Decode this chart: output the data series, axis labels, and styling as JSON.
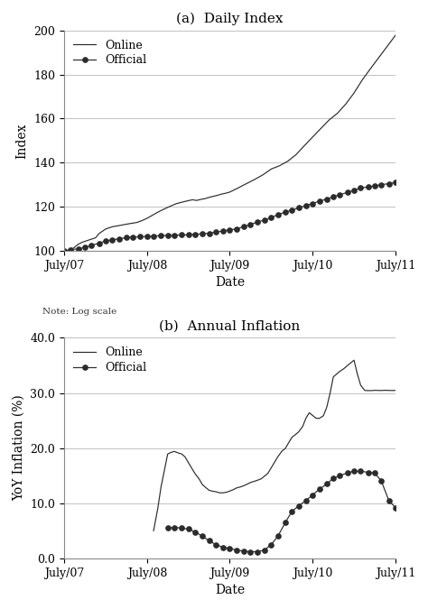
{
  "title_a": "(a)  Daily Index",
  "title_b": "(b)  Annual Inflation",
  "xlabel": "Date",
  "ylabel_a": "Index",
  "ylabel_b": "YoY Inflation (%)",
  "note": "Note: Log scale",
  "xtick_labels": [
    "July/07",
    "July/08",
    "July/09",
    "July/10",
    "July/11"
  ],
  "panel_a": {
    "ylim": [
      100,
      200
    ],
    "yticks": [
      100,
      120,
      140,
      160,
      180,
      200
    ],
    "online_pts_t": [
      0.0,
      0.08,
      0.12,
      0.17,
      0.22,
      0.3,
      0.38,
      0.42,
      0.5,
      0.58,
      0.65,
      0.72,
      0.8,
      0.88,
      0.95,
      1.0,
      1.05,
      1.12,
      1.2,
      1.28,
      1.35,
      1.4,
      1.45,
      1.5,
      1.55,
      1.6,
      1.65,
      1.7,
      1.75,
      1.8,
      1.85,
      1.9,
      1.95,
      2.0,
      2.1,
      2.2,
      2.3,
      2.4,
      2.5,
      2.6,
      2.7,
      2.8,
      2.9,
      3.0,
      3.1,
      3.2,
      3.3,
      3.4,
      3.5,
      3.6,
      3.7,
      3.8,
      3.9,
      4.0
    ],
    "online_pts_v": [
      100,
      100.5,
      101.5,
      103,
      104,
      105,
      106,
      108,
      110,
      111,
      111.5,
      112,
      112.5,
      113,
      114,
      115,
      116,
      117.5,
      119,
      120.5,
      121.5,
      122,
      122.5,
      122.8,
      123.2,
      123.0,
      123.5,
      124,
      124.5,
      125,
      125.5,
      126,
      126.5,
      127,
      129,
      131,
      133,
      135,
      137.5,
      139,
      141,
      144,
      148,
      152,
      156,
      160,
      163,
      167,
      172,
      178,
      183,
      188,
      193,
      198
    ],
    "official_pts_t": [
      0.0,
      0.08,
      0.17,
      0.25,
      0.33,
      0.42,
      0.5,
      0.58,
      0.67,
      0.75,
      0.83,
      0.92,
      1.0,
      1.08,
      1.17,
      1.25,
      1.33,
      1.42,
      1.5,
      1.58,
      1.67,
      1.75,
      1.83,
      1.92,
      2.0,
      2.08,
      2.17,
      2.25,
      2.33,
      2.42,
      2.5,
      2.58,
      2.67,
      2.75,
      2.83,
      2.92,
      3.0,
      3.08,
      3.17,
      3.25,
      3.33,
      3.42,
      3.5,
      3.58,
      3.67,
      3.75,
      3.83,
      3.92,
      4.0
    ],
    "official_pts_v": [
      100,
      100.5,
      101,
      101.5,
      102.5,
      103.5,
      104.5,
      105,
      105.5,
      106,
      106.2,
      106.4,
      106.5,
      106.7,
      106.9,
      107,
      107.1,
      107.2,
      107.3,
      107.5,
      107.7,
      108,
      108.5,
      109,
      109.5,
      110,
      111,
      112,
      113,
      114,
      115,
      116.5,
      117.5,
      118.5,
      119.5,
      120.5,
      121.5,
      122.5,
      123.5,
      124.5,
      125.5,
      126.5,
      127.5,
      128.5,
      129,
      129.5,
      130,
      130.5,
      131
    ]
  },
  "panel_b": {
    "ylim": [
      0,
      40
    ],
    "yticks": [
      0.0,
      10.0,
      20.0,
      30.0,
      40.0
    ],
    "online_pts_t": [
      1.08,
      1.13,
      1.17,
      1.21,
      1.25,
      1.29,
      1.33,
      1.38,
      1.42,
      1.46,
      1.5,
      1.54,
      1.58,
      1.63,
      1.67,
      1.71,
      1.75,
      1.79,
      1.83,
      1.88,
      1.92,
      1.96,
      2.0,
      2.04,
      2.08,
      2.13,
      2.17,
      2.21,
      2.25,
      2.29,
      2.33,
      2.38,
      2.42,
      2.46,
      2.5,
      2.54,
      2.58,
      2.63,
      2.67,
      2.71,
      2.75,
      2.79,
      2.83,
      2.88,
      2.92,
      2.96,
      3.0,
      3.04,
      3.08,
      3.13,
      3.17,
      3.21,
      3.25,
      3.29,
      3.33,
      3.38,
      3.42,
      3.46,
      3.5,
      3.54,
      3.58,
      3.63,
      3.67,
      3.71,
      3.75,
      3.79,
      3.83,
      3.88,
      3.92,
      3.96,
      4.0
    ],
    "online_pts_v": [
      5,
      9,
      13,
      16,
      19,
      19.3,
      19.5,
      19.2,
      19.0,
      18.5,
      17.5,
      16.5,
      15.5,
      14.5,
      13.5,
      13.0,
      12.5,
      12.3,
      12.2,
      12.0,
      12.0,
      12.1,
      12.3,
      12.5,
      12.8,
      13.0,
      13.2,
      13.5,
      13.8,
      14.0,
      14.2,
      14.5,
      15.0,
      15.5,
      16.5,
      17.5,
      18.5,
      19.5,
      20.0,
      21.0,
      22.0,
      22.5,
      23.0,
      24.0,
      25.5,
      26.5,
      26.0,
      25.5,
      25.5,
      26.0,
      27.5,
      30.0,
      33.0,
      33.5,
      34.0,
      34.5,
      35.0,
      35.5,
      36.0,
      33.5,
      31.5,
      30.5,
      30.5,
      30.5,
      30.5,
      30.5,
      30.5,
      30.5,
      30.5,
      30.5,
      30.5
    ],
    "official_pts_t": [
      1.25,
      1.33,
      1.42,
      1.5,
      1.58,
      1.67,
      1.75,
      1.83,
      1.92,
      2.0,
      2.08,
      2.17,
      2.25,
      2.33,
      2.42,
      2.5,
      2.58,
      2.67,
      2.75,
      2.83,
      2.92,
      3.0,
      3.08,
      3.17,
      3.25,
      3.33,
      3.42,
      3.5,
      3.58,
      3.67,
      3.75,
      3.83,
      3.92,
      4.0
    ],
    "official_pts_v": [
      5.5,
      5.6,
      5.5,
      5.3,
      4.8,
      4.0,
      3.2,
      2.5,
      2.0,
      1.8,
      1.5,
      1.3,
      1.2,
      1.2,
      1.5,
      2.5,
      4.0,
      6.5,
      8.5,
      9.5,
      10.5,
      11.5,
      12.5,
      13.5,
      14.5,
      15.0,
      15.5,
      15.8,
      15.8,
      15.6,
      15.5,
      14.0,
      10.5,
      9.2
    ]
  },
  "line_color": "#2b2b2b",
  "bg_color": "#ffffff",
  "grid_color": "#aaaaaa",
  "title_fontsize": 11,
  "label_fontsize": 10,
  "tick_fontsize": 9,
  "note_fontsize": 7.5
}
